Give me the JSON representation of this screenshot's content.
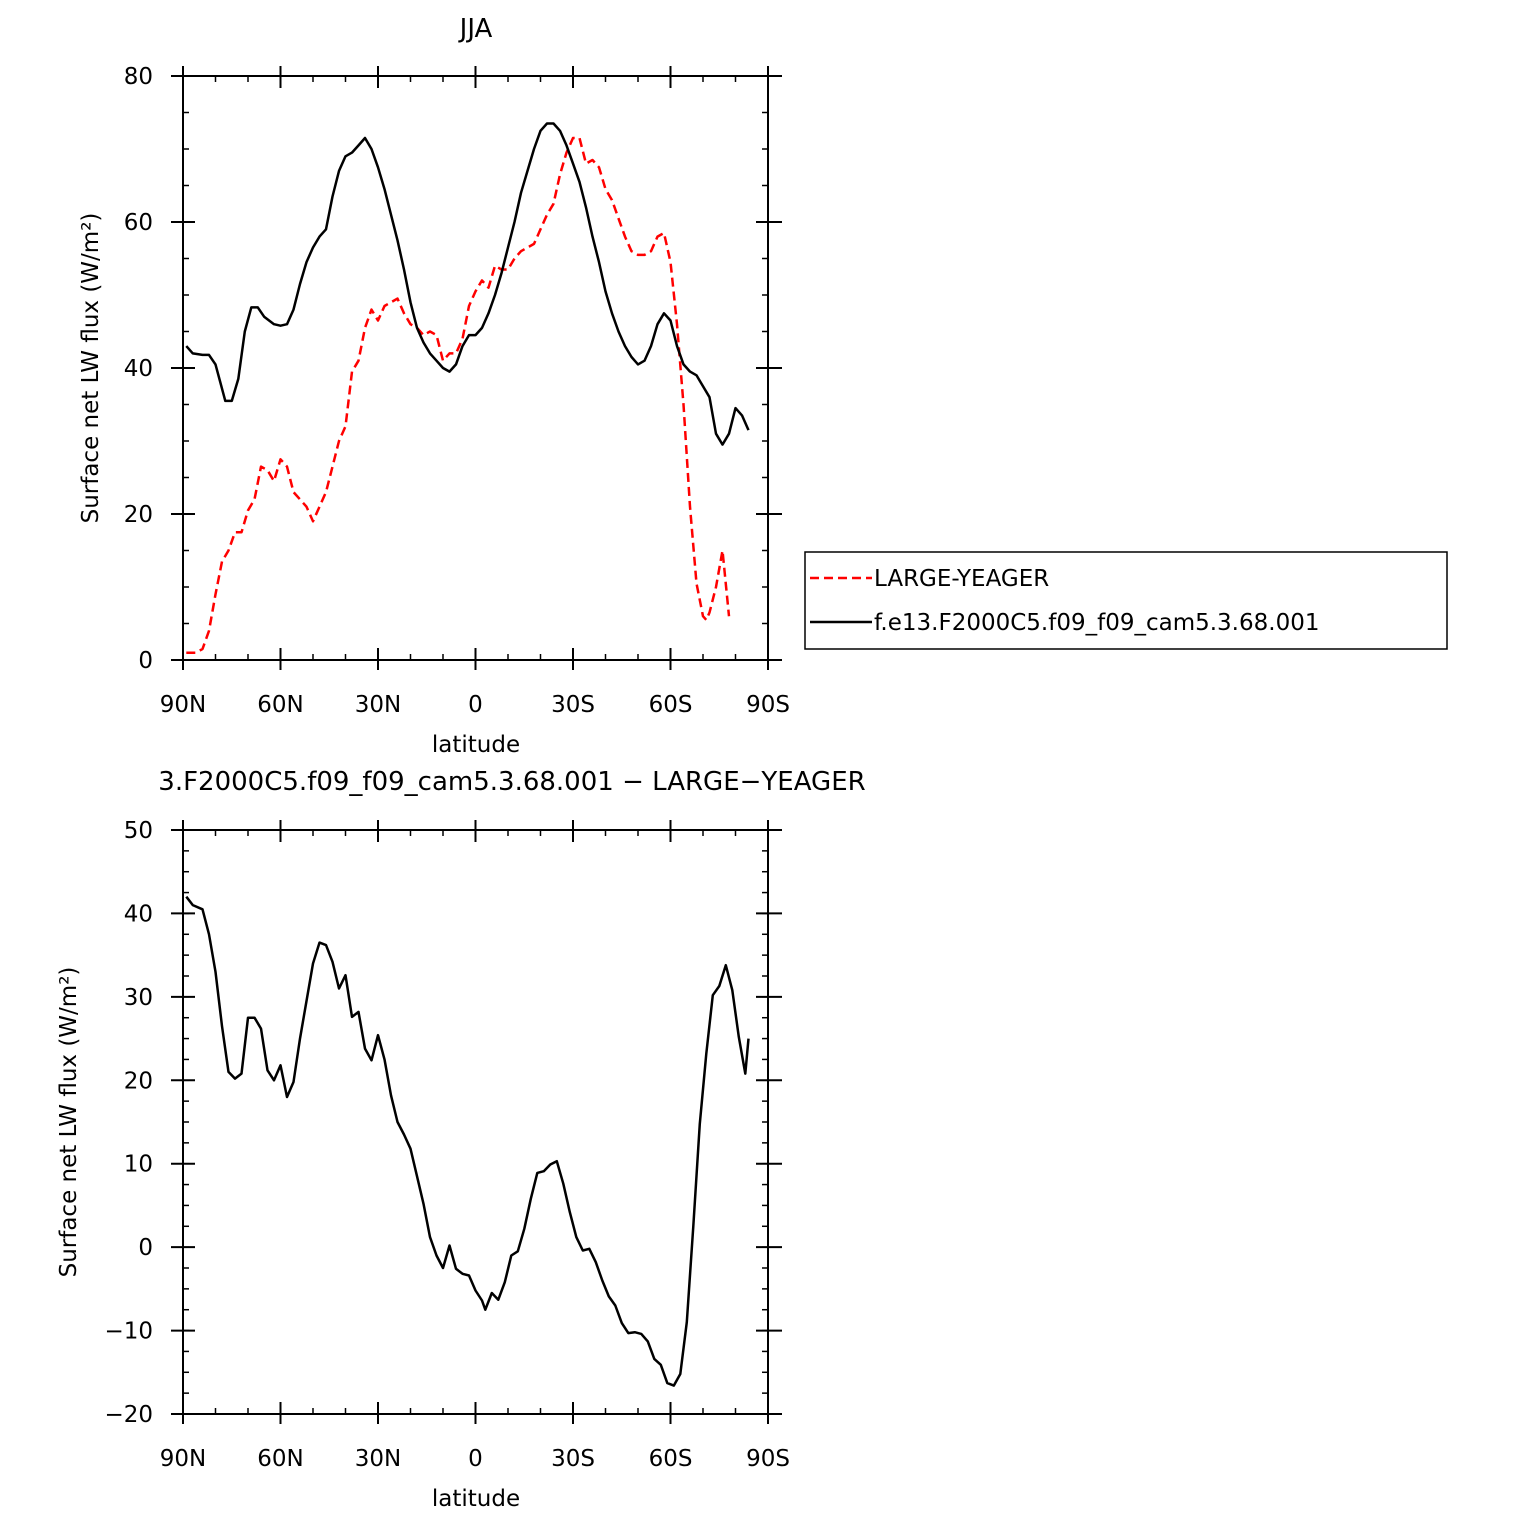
{
  "chart_data": [
    {
      "type": "line",
      "title": "JJA",
      "xlabel": "latitude",
      "ylabel": "Surface net LW flux (W/m²)",
      "xlim": [
        90,
        -90
      ],
      "ylim": [
        0,
        80
      ],
      "xticks": [
        90,
        60,
        30,
        0,
        -30,
        -60,
        -90
      ],
      "xtick_labels": [
        "90N",
        "60N",
        "30N",
        "0",
        "30S",
        "60S",
        "90S"
      ],
      "yticks": [
        0,
        20,
        40,
        60,
        80
      ],
      "ytick_labels": [
        "0",
        "20",
        "40",
        "60",
        "80"
      ],
      "legend_position": "right-outside",
      "series": [
        {
          "name": "LARGE-YEAGER",
          "color": "#ff0000",
          "dash": "dashed",
          "points": [
            [
              89,
              1
            ],
            [
              86,
              1
            ],
            [
              84,
              1.5
            ],
            [
              82,
              4
            ],
            [
              80,
              9
            ],
            [
              78,
              13.5
            ],
            [
              76,
              15
            ],
            [
              74,
              17.5
            ],
            [
              72,
              17.5
            ],
            [
              70,
              20.5
            ],
            [
              68,
              22
            ],
            [
              66,
              26.5
            ],
            [
              64,
              26
            ],
            [
              62,
              24.5
            ],
            [
              60,
              27.5
            ],
            [
              58,
              26.5
            ],
            [
              56,
              23
            ],
            [
              54,
              22
            ],
            [
              52,
              21
            ],
            [
              50,
              19
            ],
            [
              48,
              21
            ],
            [
              46,
              23
            ],
            [
              44,
              26.5
            ],
            [
              42,
              30
            ],
            [
              40,
              32
            ],
            [
              38,
              39.5
            ],
            [
              36,
              41
            ],
            [
              34,
              45.5
            ],
            [
              32,
              48
            ],
            [
              30,
              46.5
            ],
            [
              28,
              48.5
            ],
            [
              26,
              49
            ],
            [
              24,
              49.5
            ],
            [
              22,
              47.5
            ],
            [
              20,
              46
            ],
            [
              18,
              45.5
            ],
            [
              16,
              44.5
            ],
            [
              14,
              45
            ],
            [
              12,
              44.5
            ],
            [
              10,
              41
            ],
            [
              8,
              42
            ],
            [
              6,
              42
            ],
            [
              4,
              44
            ],
            [
              2,
              48.5
            ],
            [
              0,
              50.5
            ],
            [
              -2,
              52
            ],
            [
              -4,
              51
            ],
            [
              -6,
              54
            ],
            [
              -8,
              53.5
            ],
            [
              -10,
              53.5
            ],
            [
              -12,
              55
            ],
            [
              -14,
              56
            ],
            [
              -16,
              56.5
            ],
            [
              -18,
              57
            ],
            [
              -20,
              59
            ],
            [
              -22,
              61
            ],
            [
              -24,
              62.5
            ],
            [
              -26,
              66.5
            ],
            [
              -28,
              69.5
            ],
            [
              -30,
              71.5
            ],
            [
              -32,
              71.5
            ],
            [
              -34,
              68
            ],
            [
              -36,
              68.5
            ],
            [
              -38,
              67.5
            ],
            [
              -40,
              64.5
            ],
            [
              -42,
              63
            ],
            [
              -44,
              60.5
            ],
            [
              -46,
              58
            ],
            [
              -48,
              56
            ],
            [
              -50,
              55.5
            ],
            [
              -52,
              55.5
            ],
            [
              -54,
              56
            ],
            [
              -56,
              58
            ],
            [
              -58,
              58.5
            ],
            [
              -60,
              54.5
            ],
            [
              -62,
              46
            ],
            [
              -64,
              35
            ],
            [
              -66,
              21
            ],
            [
              -68,
              10.5
            ],
            [
              -70,
              6
            ],
            [
              -71,
              5.5
            ],
            [
              -72,
              6.5
            ],
            [
              -74,
              10
            ],
            [
              -76,
              15
            ],
            [
              -78,
              6
            ]
          ]
        },
        {
          "name": "f.e13.F2000C5.f09_f09_cam5.3.68.001",
          "color": "#000000",
          "dash": "solid",
          "points": [
            [
              89,
              43
            ],
            [
              87,
              42
            ],
            [
              84,
              41.8
            ],
            [
              82,
              41.8
            ],
            [
              80,
              40.5
            ],
            [
              77,
              35.5
            ],
            [
              75,
              35.5
            ],
            [
              73,
              38.5
            ],
            [
              71,
              45
            ],
            [
              69,
              48.3
            ],
            [
              67,
              48.3
            ],
            [
              65,
              47
            ],
            [
              62,
              46
            ],
            [
              60,
              45.8
            ],
            [
              58,
              46
            ],
            [
              56,
              48
            ],
            [
              54,
              51.5
            ],
            [
              52,
              54.5
            ],
            [
              50,
              56.5
            ],
            [
              48,
              58
            ],
            [
              46,
              59
            ],
            [
              44,
              63.5
            ],
            [
              42,
              67
            ],
            [
              40,
              69
            ],
            [
              38,
              69.5
            ],
            [
              36,
              70.5
            ],
            [
              34,
              71.5
            ],
            [
              32,
              70
            ],
            [
              30,
              67.5
            ],
            [
              28,
              64.5
            ],
            [
              26,
              61
            ],
            [
              24,
              57.5
            ],
            [
              22,
              53.5
            ],
            [
              20,
              49
            ],
            [
              18,
              45.5
            ],
            [
              16,
              43.5
            ],
            [
              14,
              42
            ],
            [
              12,
              41
            ],
            [
              10,
              40
            ],
            [
              8,
              39.5
            ],
            [
              6,
              40.5
            ],
            [
              4,
              43
            ],
            [
              2,
              44.5
            ],
            [
              0,
              44.5
            ],
            [
              -2,
              45.5
            ],
            [
              -4,
              47.5
            ],
            [
              -6,
              50
            ],
            [
              -8,
              53
            ],
            [
              -10,
              56.5
            ],
            [
              -12,
              60
            ],
            [
              -14,
              64
            ],
            [
              -16,
              67
            ],
            [
              -18,
              70
            ],
            [
              -20,
              72.5
            ],
            [
              -22,
              73.5
            ],
            [
              -24,
              73.5
            ],
            [
              -26,
              72.5
            ],
            [
              -28,
              70.5
            ],
            [
              -30,
              68
            ],
            [
              -32,
              65.5
            ],
            [
              -34,
              62
            ],
            [
              -36,
              58
            ],
            [
              -38,
              54.5
            ],
            [
              -40,
              50.5
            ],
            [
              -42,
              47.5
            ],
            [
              -44,
              45
            ],
            [
              -46,
              43
            ],
            [
              -48,
              41.5
            ],
            [
              -50,
              40.5
            ],
            [
              -52,
              41
            ],
            [
              -54,
              43
            ],
            [
              -56,
              46
            ],
            [
              -58,
              47.5
            ],
            [
              -60,
              46.5
            ],
            [
              -62,
              43
            ],
            [
              -64,
              40.5
            ],
            [
              -66,
              39.5
            ],
            [
              -68,
              39
            ],
            [
              -70,
              37.5
            ],
            [
              -72,
              36
            ],
            [
              -74,
              31
            ],
            [
              -76,
              29.5
            ],
            [
              -78,
              31
            ],
            [
              -80,
              34.5
            ],
            [
              -82,
              33.5
            ],
            [
              -84,
              31.5
            ]
          ]
        }
      ]
    },
    {
      "type": "line",
      "title": "3.F2000C5.f09_f09_cam5.3.68.001 − LARGE−YEAGER",
      "xlabel": "latitude",
      "ylabel": "Surface net LW flux (W/m²)",
      "xlim": [
        90,
        -90
      ],
      "ylim": [
        -20,
        50
      ],
      "xticks": [
        90,
        60,
        30,
        0,
        -30,
        -60,
        -90
      ],
      "xtick_labels": [
        "90N",
        "60N",
        "30N",
        "0",
        "30S",
        "60S",
        "90S"
      ],
      "yticks": [
        -20,
        -10,
        0,
        10,
        20,
        30,
        40,
        50
      ],
      "ytick_labels": [
        "−20",
        "−10",
        "0",
        "10",
        "20",
        "30",
        "40",
        "50"
      ],
      "series": [
        {
          "color": "#000000",
          "dash": "solid",
          "points": [
            [
              89,
              42
            ],
            [
              87,
              41
            ],
            [
              84,
              40.5
            ],
            [
              82,
              37.5
            ],
            [
              80,
              33
            ],
            [
              78,
              26.5
            ],
            [
              76,
              21
            ],
            [
              74,
              20.2
            ],
            [
              72,
              20.8
            ],
            [
              70,
              27.5
            ],
            [
              68,
              27.5
            ],
            [
              66,
              26.2
            ],
            [
              64,
              21.2
            ],
            [
              62,
              20
            ],
            [
              60,
              21.8
            ],
            [
              58,
              18
            ],
            [
              56,
              19.8
            ],
            [
              54,
              25
            ],
            [
              52,
              29.5
            ],
            [
              50,
              34
            ],
            [
              48,
              36.5
            ],
            [
              46,
              36.2
            ],
            [
              44,
              34.2
            ],
            [
              42,
              31
            ],
            [
              40,
              32.6
            ],
            [
              38,
              27.6
            ],
            [
              36,
              28.2
            ],
            [
              34,
              23.8
            ],
            [
              32,
              22.4
            ],
            [
              30,
              25.4
            ],
            [
              28,
              22.5
            ],
            [
              26,
              18.2
            ],
            [
              24,
              15
            ],
            [
              22,
              13.5
            ],
            [
              20,
              11.8
            ],
            [
              18,
              8.5
            ],
            [
              16,
              5.2
            ],
            [
              14,
              1.2
            ],
            [
              12,
              -1
            ],
            [
              10,
              -2.5
            ],
            [
              8,
              0.2
            ],
            [
              6,
              -2.6
            ],
            [
              4,
              -3.2
            ],
            [
              2,
              -3.4
            ],
            [
              0,
              -5.2
            ],
            [
              -2,
              -6.4
            ],
            [
              -3,
              -7.5
            ],
            [
              -5,
              -5.5
            ],
            [
              -7,
              -6.3
            ],
            [
              -9,
              -4.2
            ],
            [
              -11,
              -1
            ],
            [
              -13,
              -0.5
            ],
            [
              -15,
              2.2
            ],
            [
              -17,
              5.8
            ],
            [
              -19,
              8.9
            ],
            [
              -21,
              9.1
            ],
            [
              -23,
              9.9
            ],
            [
              -25,
              10.3
            ],
            [
              -27,
              7.6
            ],
            [
              -29,
              4.2
            ],
            [
              -31,
              1.2
            ],
            [
              -33,
              -0.4
            ],
            [
              -35,
              -0.2
            ],
            [
              -37,
              -1.8
            ],
            [
              -39,
              -4
            ],
            [
              -41,
              -5.9
            ],
            [
              -43,
              -7
            ],
            [
              -45,
              -9.1
            ],
            [
              -47,
              -10.3
            ],
            [
              -49,
              -10.2
            ],
            [
              -51,
              -10.4
            ],
            [
              -53,
              -11.3
            ],
            [
              -55,
              -13.4
            ],
            [
              -57,
              -14.1
            ],
            [
              -59,
              -16.3
            ],
            [
              -61,
              -16.6
            ],
            [
              -63,
              -15.2
            ],
            [
              -65,
              -9
            ],
            [
              -67,
              2.5
            ],
            [
              -69,
              14.8
            ],
            [
              -71,
              23.2
            ],
            [
              -73,
              30.2
            ],
            [
              -75,
              31.3
            ],
            [
              -77,
              33.8
            ],
            [
              -79,
              30.8
            ],
            [
              -81,
              25.2
            ],
            [
              -83,
              20.8
            ],
            [
              -84,
              25
            ]
          ]
        }
      ]
    }
  ]
}
